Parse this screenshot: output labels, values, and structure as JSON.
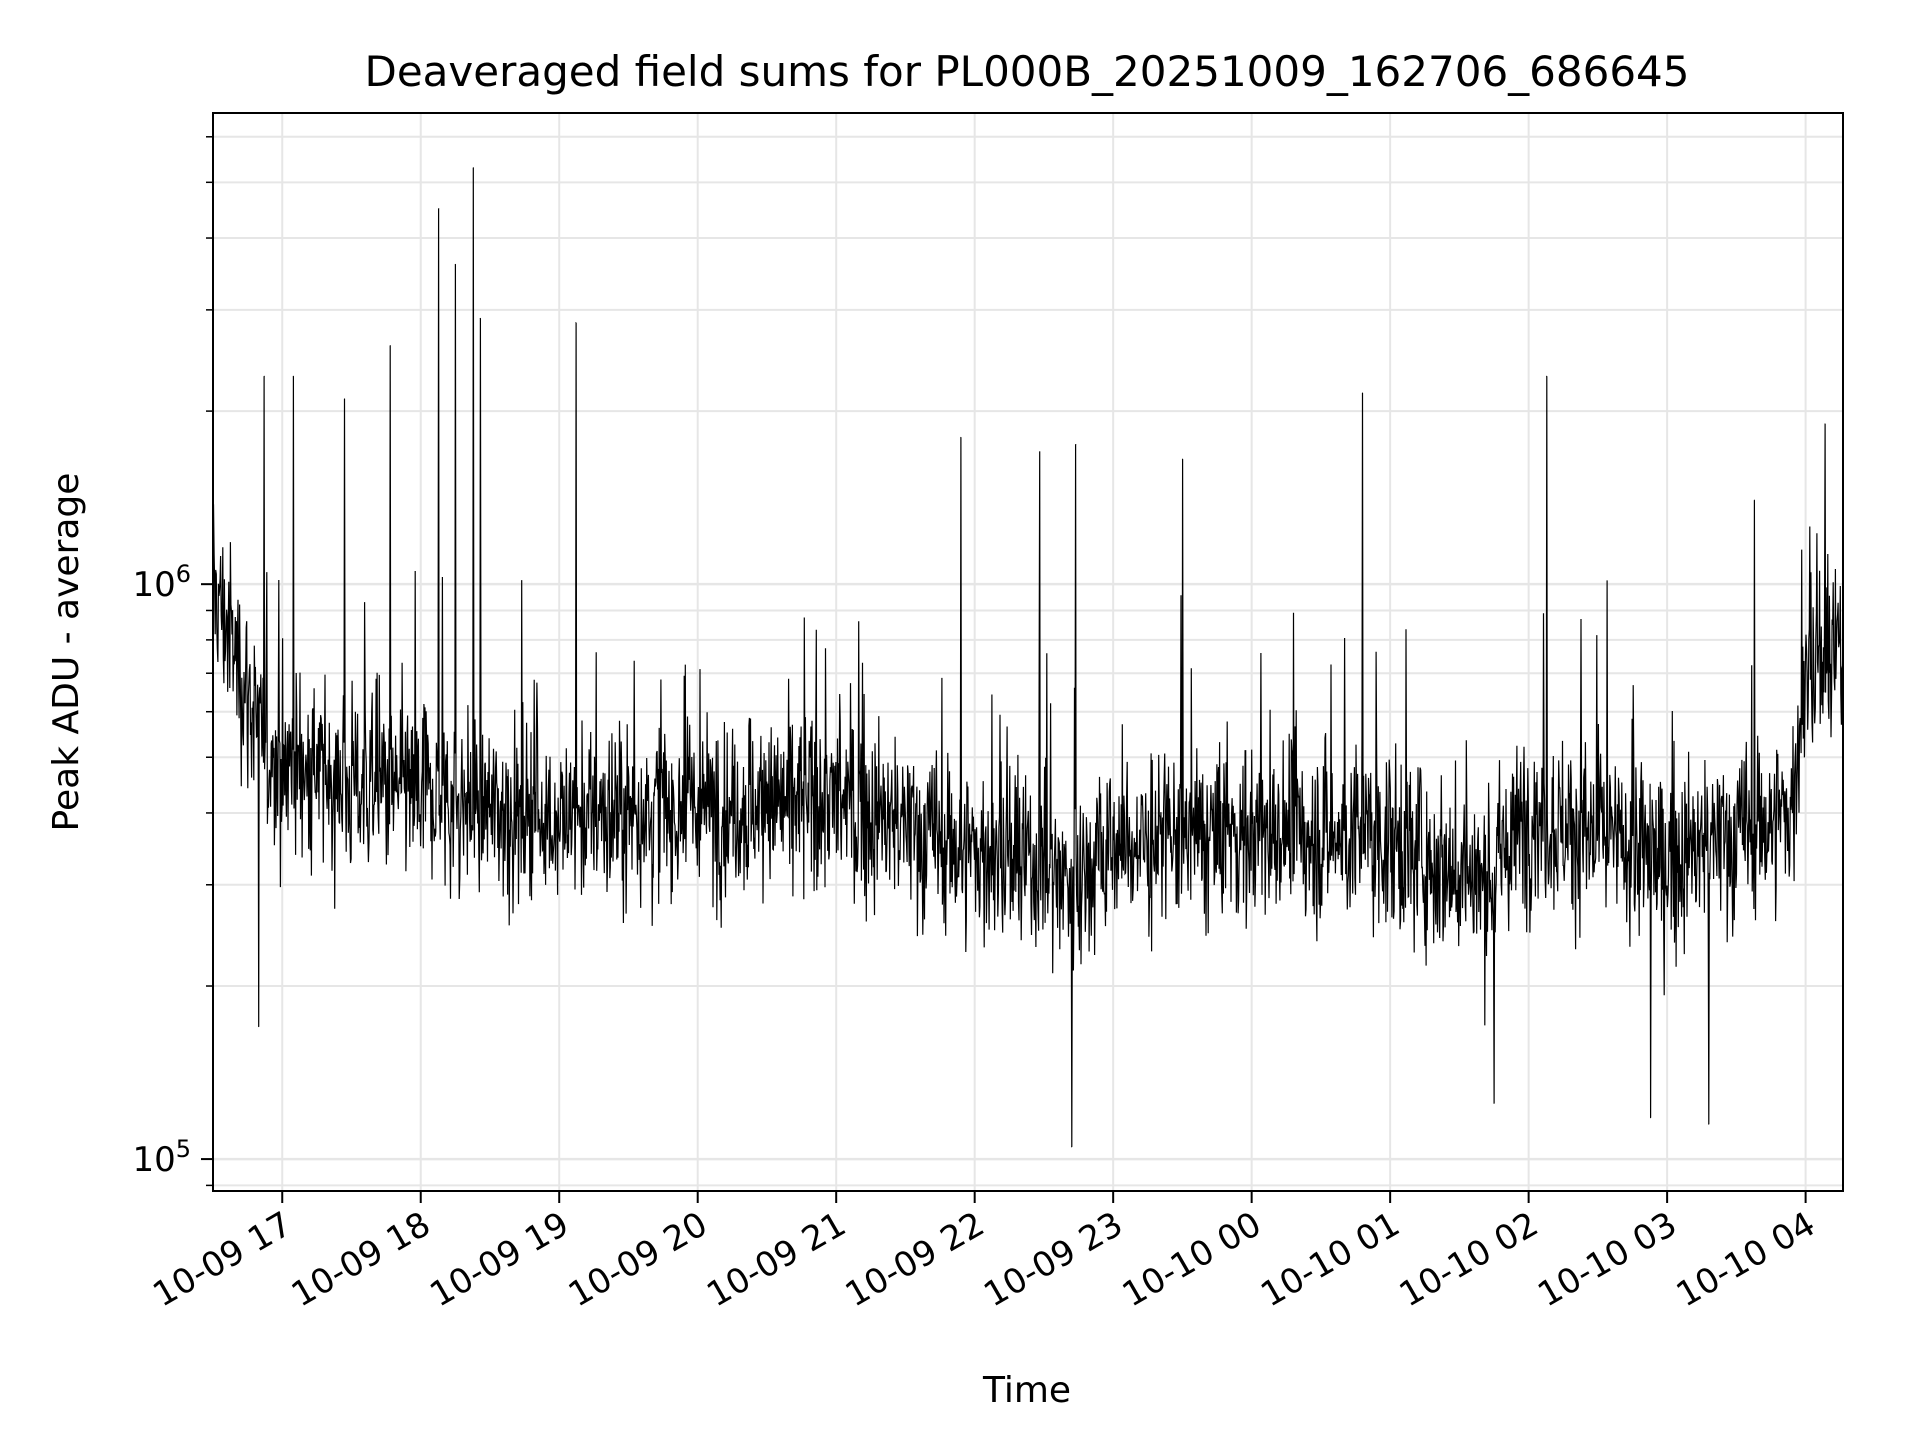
{
  "chart_data": {
    "type": "line",
    "title": "Deaveraged field sums for PL000B_20251009_162706_686645",
    "xlabel": "Time",
    "ylabel": "Peak ADU - average",
    "yscale": "log",
    "ylim": [
      88000,
      6600000
    ],
    "xlim_hours": [
      16.5,
      28.27
    ],
    "x_ticks": [
      {
        "label": "10-09 17",
        "hours": 17
      },
      {
        "label": "10-09 18",
        "hours": 18
      },
      {
        "label": "10-09 19",
        "hours": 19
      },
      {
        "label": "10-09 20",
        "hours": 20
      },
      {
        "label": "10-09 21",
        "hours": 21
      },
      {
        "label": "10-09 22",
        "hours": 22
      },
      {
        "label": "10-09 23",
        "hours": 23
      },
      {
        "label": "10-10 00",
        "hours": 24
      },
      {
        "label": "10-10 01",
        "hours": 25
      },
      {
        "label": "10-10 02",
        "hours": 26
      },
      {
        "label": "10-10 03",
        "hours": 27
      },
      {
        "label": "10-10 04",
        "hours": 28
      }
    ],
    "y_ticks": [
      {
        "base": "10",
        "exp": "5",
        "value": 100000
      },
      {
        "base": "10",
        "exp": "6",
        "value": 1000000
      }
    ],
    "grid": true,
    "line_color": "#000000",
    "series": [
      {
        "name": "Peak ADU - average",
        "baseline_hours": [
          16.5,
          16.9,
          17.5,
          18.0,
          19.0,
          20.0,
          21.0,
          22.0,
          22.7,
          23.0,
          24.0,
          25.0,
          25.7,
          26.0,
          27.0,
          27.9,
          28.0,
          28.27
        ],
        "baseline_values": [
          1000000,
          500000,
          450000,
          430000,
          390000,
          410000,
          420000,
          340000,
          310000,
          350000,
          370000,
          360000,
          300000,
          400000,
          330000,
          400000,
          700000,
          750000
        ],
        "spikes": [
          {
            "hours": 16.87,
            "value": 2300000
          },
          {
            "hours": 17.08,
            "value": 2300000
          },
          {
            "hours": 17.45,
            "value": 2100000
          },
          {
            "hours": 17.78,
            "value": 2600000
          },
          {
            "hours": 18.13,
            "value": 4500000
          },
          {
            "hours": 18.25,
            "value": 3600000
          },
          {
            "hours": 18.38,
            "value": 5300000
          },
          {
            "hours": 18.43,
            "value": 2900000
          },
          {
            "hours": 19.12,
            "value": 2850000
          },
          {
            "hours": 21.9,
            "value": 1800000
          },
          {
            "hours": 22.47,
            "value": 1700000
          },
          {
            "hours": 22.73,
            "value": 1750000
          },
          {
            "hours": 23.5,
            "value": 1650000
          },
          {
            "hours": 24.8,
            "value": 2150000
          },
          {
            "hours": 26.13,
            "value": 2300000
          },
          {
            "hours": 27.63,
            "value": 1400000
          },
          {
            "hours": 28.14,
            "value": 1900000
          }
        ],
        "dips": [
          {
            "hours": 16.83,
            "value": 170000
          },
          {
            "hours": 22.7,
            "value": 105000
          },
          {
            "hours": 25.75,
            "value": 125000
          },
          {
            "hours": 26.88,
            "value": 118000
          },
          {
            "hours": 27.3,
            "value": 115000
          }
        ]
      }
    ]
  }
}
